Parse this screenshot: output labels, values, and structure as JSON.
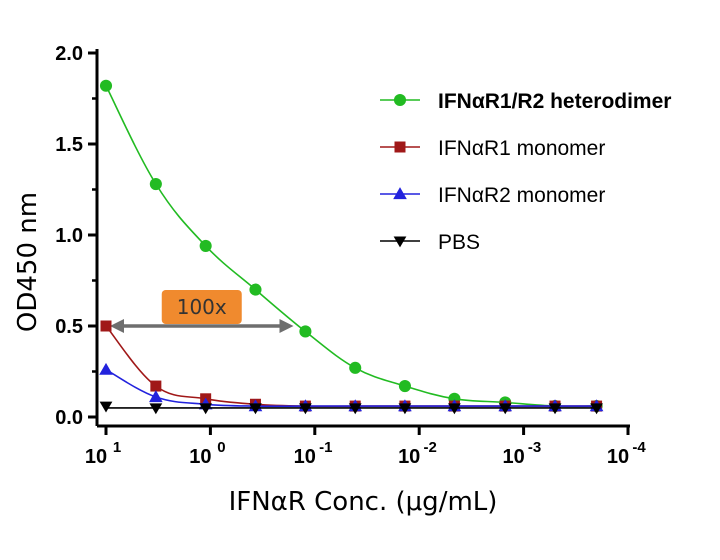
{
  "chart_data": {
    "type": "line",
    "xlabel": "IFNαR Conc. (μg/mL)",
    "ylabel": "OD450 nm",
    "x_scale": "log-reversed",
    "xlim": [
      10,
      0.0001
    ],
    "ylim": [
      0,
      2.0
    ],
    "y_ticks": [
      "0.0",
      "0.5",
      "1.0",
      "1.5",
      "2.0"
    ],
    "x_ticks": [
      {
        "value": 10,
        "base": "10",
        "exp": "1"
      },
      {
        "value": 1,
        "base": "10",
        "exp": "0"
      },
      {
        "value": 0.1,
        "base": "10",
        "exp": "-1"
      },
      {
        "value": 0.01,
        "base": "10",
        "exp": "-2"
      },
      {
        "value": 0.001,
        "base": "10",
        "exp": "-3"
      },
      {
        "value": 0.0001,
        "base": "10",
        "exp": "-4"
      }
    ],
    "legend_position": "top-right",
    "series": [
      {
        "name": "IFNαR1/R2 heterodimer",
        "color": "#22bb22",
        "marker": "circle",
        "bold": true,
        "x": [
          10,
          3.33,
          1.11,
          0.37,
          0.123,
          0.041,
          0.0137,
          0.0046,
          0.0015,
          0.0005,
          0.0002
        ],
        "y": [
          1.82,
          1.28,
          0.94,
          0.7,
          0.47,
          0.27,
          0.17,
          0.1,
          0.08,
          0.06,
          0.06
        ]
      },
      {
        "name": "IFNαR1 monomer",
        "color": "#a01818",
        "marker": "square",
        "bold": false,
        "x": [
          10,
          3.33,
          1.11,
          0.37,
          0.123,
          0.041,
          0.0137,
          0.0046,
          0.0015,
          0.0005,
          0.0002
        ],
        "y": [
          0.5,
          0.17,
          0.1,
          0.07,
          0.06,
          0.06,
          0.06,
          0.06,
          0.06,
          0.06,
          0.06
        ]
      },
      {
        "name": "IFNαR2 monomer",
        "color": "#2222dd",
        "marker": "triangle-up",
        "bold": false,
        "x": [
          10,
          3.33,
          1.11,
          0.37,
          0.123,
          0.041,
          0.0137,
          0.0046,
          0.0015,
          0.0005,
          0.0002
        ],
        "y": [
          0.26,
          0.11,
          0.07,
          0.06,
          0.06,
          0.06,
          0.06,
          0.06,
          0.06,
          0.06,
          0.06
        ]
      },
      {
        "name": "PBS",
        "color": "#000000",
        "marker": "triangle-down",
        "bold": false,
        "x": [
          10,
          3.33,
          1.11,
          0.37,
          0.123,
          0.041,
          0.0137,
          0.0046,
          0.0015,
          0.0005,
          0.0002
        ],
        "y": [
          0.06,
          0.05,
          0.05,
          0.05,
          0.05,
          0.05,
          0.05,
          0.05,
          0.05,
          0.05,
          0.05
        ]
      }
    ],
    "annotation": {
      "text": "100x",
      "from_x": 10,
      "to_x": 0.16,
      "y": 0.5,
      "box_color": "#f08a2e",
      "arrow_color": "#6e6e6e"
    }
  }
}
